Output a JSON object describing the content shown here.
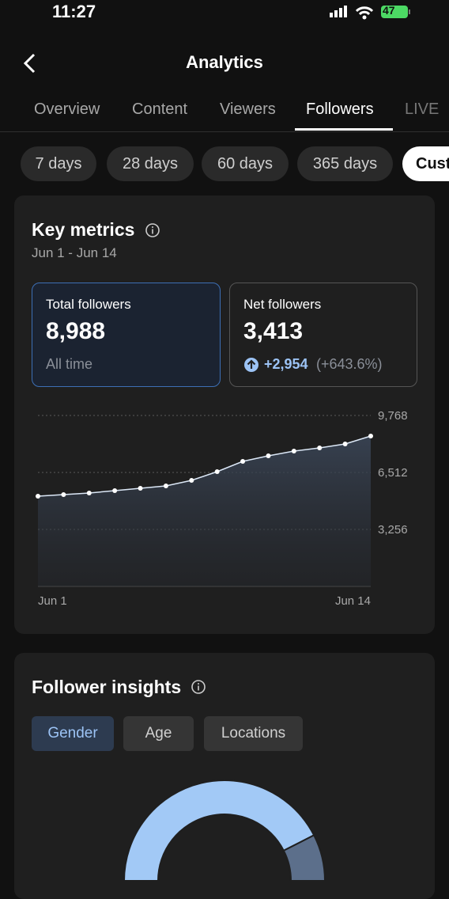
{
  "status_bar": {
    "time": "11:27",
    "battery": "47"
  },
  "header": {
    "title": "Analytics"
  },
  "tabs": [
    "Overview",
    "Content",
    "Viewers",
    "Followers",
    "LIVE"
  ],
  "date_ranges": [
    "7 days",
    "28 days",
    "60 days",
    "365 days",
    "Custom"
  ],
  "key_metrics": {
    "title": "Key metrics",
    "date_range": "Jun 1 - Jun 14",
    "total_followers": {
      "label": "Total followers",
      "value": "8,988",
      "note": "All time"
    },
    "net_followers": {
      "label": "Net followers",
      "value": "3,413",
      "change": "+2,954",
      "change_percent": "(+643.6%)"
    }
  },
  "chart_data": [
    {
      "type": "line",
      "categories": [
        "Jun 1",
        null,
        null,
        null,
        null,
        null,
        null,
        null,
        null,
        null,
        null,
        null,
        null,
        "Jun 14"
      ],
      "values": [
        5155,
        5246,
        5336,
        5472,
        5608,
        5743,
        6060,
        6557,
        7145,
        7462,
        7733,
        7914,
        8140,
        8592
      ],
      "color": "#dce8f7",
      "ylim": [
        0,
        9768
      ],
      "yticks": [
        {
          "value": 3256,
          "label": "3,256"
        },
        {
          "value": 6512,
          "label": "6,512"
        },
        {
          "value": 9768,
          "label": "9,768"
        }
      ],
      "grid": true
    },
    {
      "type": "donut",
      "values": [
        85,
        15
      ],
      "colors": [
        "#a2c9f6",
        "#5c6f8b"
      ]
    }
  ],
  "follower_insights": {
    "title": "Follower insights",
    "filters": [
      "Gender",
      "Age",
      "Locations"
    ]
  }
}
